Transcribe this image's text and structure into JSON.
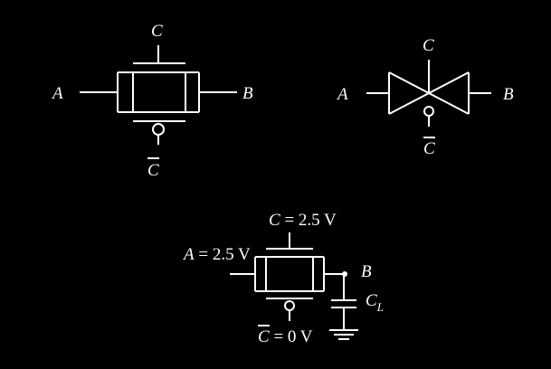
{
  "colors": {
    "background": "#000000",
    "foreground": "#ffffff"
  },
  "tgate_transistor": {
    "gate": "C",
    "input": "A",
    "output": "B",
    "gate_bar": "C"
  },
  "tgate_symbol": {
    "gate": "C",
    "input": "A",
    "output": "B",
    "gate_bar": "C"
  },
  "tgate_example": {
    "gate_var": "C",
    "gate_val": " = 2.5 V",
    "input_var": "A",
    "input_val": " = 2.5 V",
    "output": "B",
    "cap_main": "C",
    "cap_sub": "L",
    "gate_bar_var": "C",
    "gate_bar_val": " = 0 V"
  }
}
